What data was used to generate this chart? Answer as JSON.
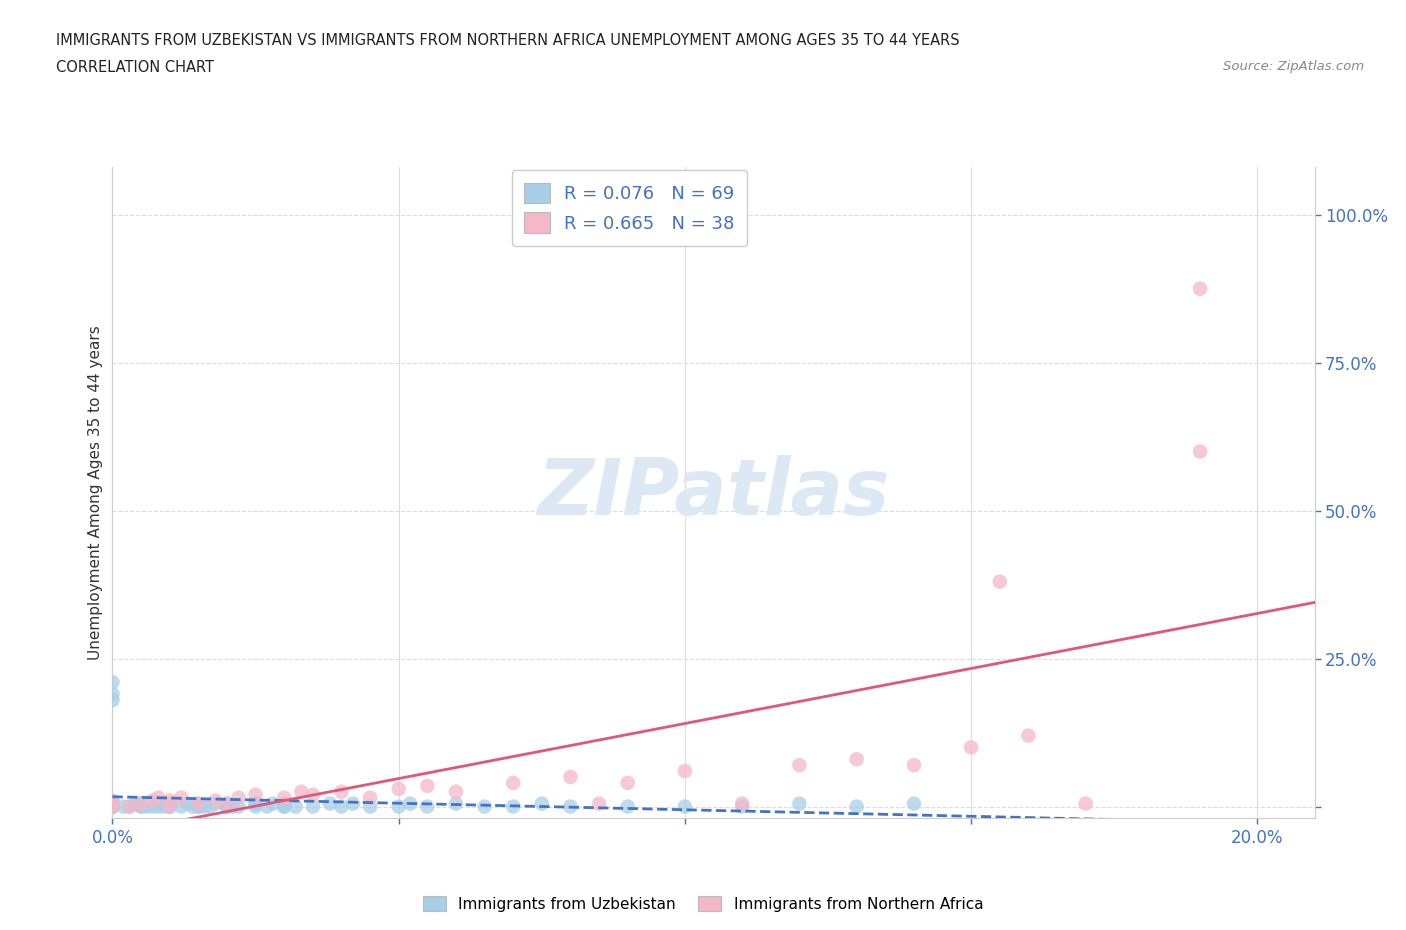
{
  "title_line1": "IMMIGRANTS FROM UZBEKISTAN VS IMMIGRANTS FROM NORTHERN AFRICA UNEMPLOYMENT AMONG AGES 35 TO 44 YEARS",
  "title_line2": "CORRELATION CHART",
  "source_text": "Source: ZipAtlas.com",
  "ylabel": "Unemployment Among Ages 35 to 44 years",
  "xlim": [
    0.0,
    0.21
  ],
  "ylim": [
    -0.02,
    1.08
  ],
  "x_ticks": [
    0.0,
    0.05,
    0.1,
    0.15,
    0.2
  ],
  "x_tick_labels": [
    "0.0%",
    "",
    "",
    "",
    "20.0%"
  ],
  "y_ticks": [
    0.0,
    0.25,
    0.5,
    0.75,
    1.0
  ],
  "y_tick_labels": [
    "",
    "25.0%",
    "50.0%",
    "75.0%",
    "100.0%"
  ],
  "R_uzbekistan": 0.076,
  "N_uzbekistan": 69,
  "R_n_africa": 0.665,
  "N_n_africa": 38,
  "color_uzbekistan": "#a8cfe8",
  "color_n_africa": "#f4b8c8",
  "trendline_color_uzbekistan": "#4472c4",
  "trendline_color_n_africa": "#e05878",
  "watermark_color": "#dce9f5",
  "legend_label_uzbekistan": "Immigrants from Uzbekistan",
  "legend_label_n_africa": "Immigrants from Northern Africa",
  "uzbekistan_x": [
    0.0,
    0.0,
    0.0,
    0.0,
    0.0,
    0.0,
    0.0,
    0.002,
    0.003,
    0.004,
    0.005,
    0.005,
    0.005,
    0.006,
    0.007,
    0.008,
    0.009,
    0.01,
    0.01,
    0.01,
    0.01,
    0.012,
    0.013,
    0.014,
    0.015,
    0.015,
    0.016,
    0.017,
    0.018,
    0.02,
    0.02,
    0.021,
    0.022,
    0.025,
    0.025,
    0.027,
    0.028,
    0.03,
    0.03,
    0.032,
    0.035,
    0.038,
    0.04,
    0.042,
    0.045,
    0.05,
    0.052,
    0.055,
    0.06,
    0.065,
    0.07,
    0.075,
    0.08,
    0.09,
    0.1,
    0.11,
    0.12,
    0.13,
    0.14,
    0.0,
    0.0,
    0.0,
    0.005,
    0.008,
    0.01,
    0.015,
    0.02,
    0.025,
    0.03
  ],
  "uzbekistan_y": [
    0.0,
    0.0,
    0.0,
    0.005,
    0.005,
    0.01,
    0.0,
    0.0,
    0.0,
    0.005,
    0.0,
    0.005,
    0.005,
    0.0,
    0.0,
    0.005,
    0.0,
    0.0,
    0.0,
    0.0,
    0.005,
    0.0,
    0.005,
    0.0,
    0.0,
    0.005,
    0.0,
    0.0,
    0.005,
    0.0,
    0.005,
    0.0,
    0.0,
    0.005,
    0.005,
    0.0,
    0.005,
    0.0,
    0.005,
    0.0,
    0.0,
    0.005,
    0.0,
    0.005,
    0.0,
    0.0,
    0.005,
    0.0,
    0.005,
    0.0,
    0.0,
    0.005,
    0.0,
    0.0,
    0.0,
    0.0,
    0.005,
    0.0,
    0.005,
    0.19,
    0.18,
    0.21,
    0.0,
    0.0,
    0.005,
    0.0,
    0.0,
    0.0,
    0.0
  ],
  "n_africa_x": [
    0.0,
    0.0,
    0.0,
    0.003,
    0.005,
    0.007,
    0.008,
    0.01,
    0.01,
    0.012,
    0.015,
    0.018,
    0.02,
    0.022,
    0.025,
    0.03,
    0.033,
    0.035,
    0.04,
    0.045,
    0.05,
    0.055,
    0.06,
    0.07,
    0.08,
    0.085,
    0.09,
    0.1,
    0.11,
    0.12,
    0.13,
    0.14,
    0.15,
    0.155,
    0.16,
    0.17,
    0.19,
    0.19
  ],
  "n_africa_y": [
    0.0,
    0.005,
    0.005,
    0.0,
    0.005,
    0.01,
    0.015,
    0.0,
    0.01,
    0.015,
    0.005,
    0.01,
    0.005,
    0.015,
    0.02,
    0.015,
    0.025,
    0.02,
    0.025,
    0.015,
    0.03,
    0.035,
    0.025,
    0.04,
    0.05,
    0.005,
    0.04,
    0.06,
    0.005,
    0.07,
    0.08,
    0.07,
    0.1,
    0.38,
    0.12,
    0.005,
    0.6,
    0.875
  ]
}
